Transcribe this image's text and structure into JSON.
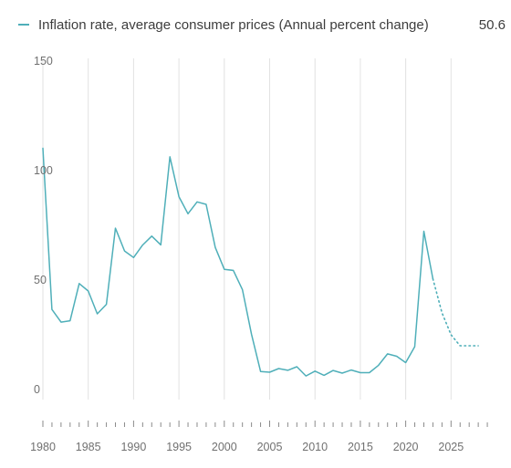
{
  "chart_data": {
    "type": "line",
    "legend": {
      "label": "Inflation rate, average consumer prices (Annual percent change)",
      "latest_value": "50.6",
      "placement": "top"
    },
    "x_ticks": [
      "1980",
      "1985",
      "1990",
      "1995",
      "2000",
      "2005",
      "2010",
      "2015",
      "2020",
      "2025"
    ],
    "y_ticks": [
      "150",
      "100",
      "50",
      "0"
    ],
    "xlim": [
      1980,
      2029
    ],
    "ylim": [
      0,
      150
    ],
    "grid": "vertical",
    "colors": {
      "series": "#4fafb9",
      "grid": "#e2e2e2",
      "axis_ticks": "#8a8a8a"
    },
    "series": [
      {
        "name": "Inflation rate, average consumer prices (Annual percent change)",
        "style": "solid",
        "x": [
          1980,
          1981,
          1982,
          1983,
          1984,
          1985,
          1986,
          1987,
          1988,
          1989,
          1990,
          1991,
          1992,
          1993,
          1994,
          1995,
          1996,
          1997,
          1998,
          1999,
          2000,
          2001,
          2002,
          2003,
          2004,
          2005,
          2006,
          2007,
          2008,
          2009,
          2010,
          2011,
          2012,
          2013,
          2014,
          2015,
          2016,
          2017,
          2018,
          2019,
          2020,
          2021,
          2022,
          2023
        ],
        "values": [
          110.2,
          36.6,
          30.8,
          31.4,
          48.4,
          45.0,
          34.6,
          38.9,
          73.7,
          63.3,
          60.3,
          66.0,
          70.1,
          66.1,
          106.3,
          88.1,
          80.3,
          85.7,
          84.6,
          64.9,
          54.9,
          54.4,
          45.6,
          25.3,
          8.2,
          7.9,
          9.6,
          8.8,
          10.4,
          6.2,
          8.4,
          6.5,
          8.7,
          7.5,
          8.9,
          7.7,
          7.7,
          11.1,
          16.3,
          15.2,
          12.3,
          19.6,
          72.3,
          50.6
        ]
      },
      {
        "name": "",
        "style": "dotted",
        "x": [
          2023,
          2024,
          2025,
          2026,
          2027,
          2028
        ],
        "values": [
          50.6,
          35.0,
          25.0,
          20.0,
          20.0,
          20.0
        ]
      }
    ]
  }
}
